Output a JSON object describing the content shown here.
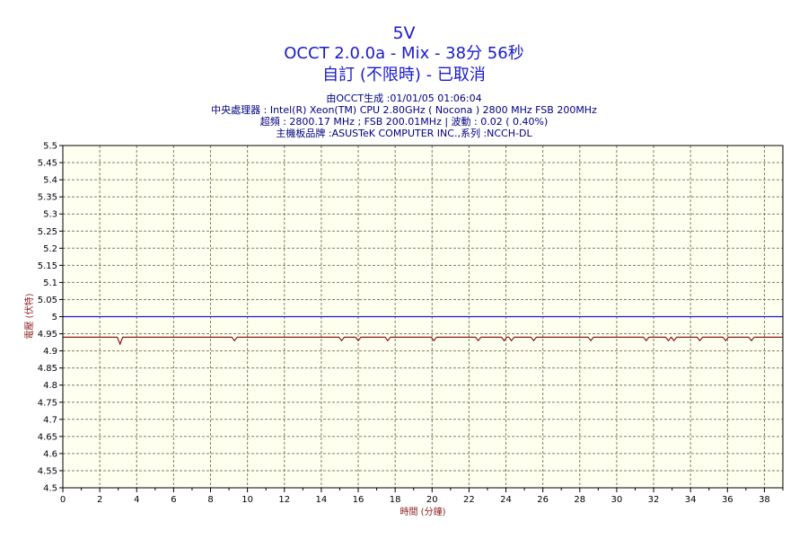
{
  "header": {
    "title": "5V",
    "subtitle1": "OCCT 2.0.0a - Mix - 38分 56秒",
    "subtitle2": "自訂 (不限時) - 已取消",
    "info": [
      "由OCCT生成 :01/01/05 01:06:04",
      "中央處理器 : Intel(R) Xeon(TM) CPU 2.80GHz ( Nocona ) 2800 MHz FSB 200MHz",
      "超頻 : 2800.17 MHz ; FSB 200.01MHz | 波動 : 0.02 ( 0.40%)",
      "主機板品牌 :ASUSTeK COMPUTER INC.,系列 :NCCH-DL"
    ]
  },
  "colors": {
    "plot_background": "#fffff0",
    "grid": "#808060",
    "reference_line": "#1a1acc",
    "series_line": "#8b1a1a"
  },
  "chart_data": {
    "type": "line",
    "xlabel": "時間 (分鐘)",
    "ylabel": "電壓 (伏特)",
    "xlim": [
      0,
      39
    ],
    "ylim": [
      4.5,
      5.5
    ],
    "x_ticks": [
      0,
      2,
      4,
      6,
      8,
      10,
      12,
      14,
      16,
      18,
      20,
      22,
      24,
      26,
      28,
      30,
      32,
      34,
      36,
      38
    ],
    "y_ticks": [
      4.5,
      4.55,
      4.6,
      4.65,
      4.7,
      4.75,
      4.8,
      4.85,
      4.9,
      4.95,
      5,
      5.05,
      5.1,
      5.15,
      5.2,
      5.25,
      5.3,
      5.35,
      5.4,
      5.45,
      5.5
    ],
    "grid": true,
    "reference": {
      "y": 5.0
    },
    "series": [
      {
        "baseline": 4.94,
        "dips": [
          {
            "x": 3.1,
            "y": 4.92
          },
          {
            "x": 9.3,
            "y": 4.93
          },
          {
            "x": 15.1,
            "y": 4.93
          },
          {
            "x": 16.0,
            "y": 4.93
          },
          {
            "x": 17.6,
            "y": 4.93
          },
          {
            "x": 20.1,
            "y": 4.93
          },
          {
            "x": 22.5,
            "y": 4.93
          },
          {
            "x": 23.9,
            "y": 4.93
          },
          {
            "x": 24.3,
            "y": 4.93
          },
          {
            "x": 25.5,
            "y": 4.93
          },
          {
            "x": 28.6,
            "y": 4.93
          },
          {
            "x": 31.6,
            "y": 4.93
          },
          {
            "x": 32.8,
            "y": 4.93
          },
          {
            "x": 33.1,
            "y": 4.93
          },
          {
            "x": 34.5,
            "y": 4.93
          },
          {
            "x": 35.9,
            "y": 4.93
          },
          {
            "x": 37.3,
            "y": 4.93
          }
        ]
      }
    ]
  }
}
